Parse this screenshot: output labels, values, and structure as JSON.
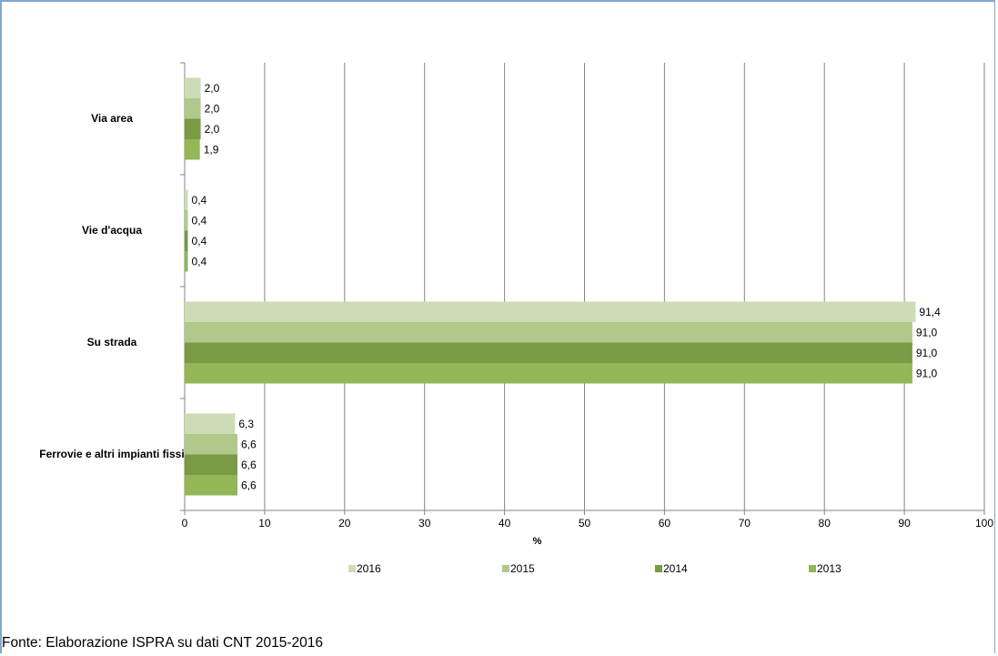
{
  "chart_data": {
    "type": "barh",
    "xlabel": "%",
    "categories": [
      "Via area",
      "Vie d'acqua",
      "Su strada",
      "Ferrovie e altri impianti fissi"
    ],
    "series": [
      {
        "name": "2016",
        "color": "#cddcb6",
        "values": [
          2.0,
          0.4,
          91.4,
          6.3
        ],
        "value_labels": [
          "2,0",
          "0,4",
          "91,4",
          "6,3"
        ]
      },
      {
        "name": "2015",
        "color": "#b0c98a",
        "values": [
          2.0,
          0.4,
          91.0,
          6.6
        ],
        "value_labels": [
          "2,0",
          "0,4",
          "91,0",
          "6,6"
        ]
      },
      {
        "name": "2014",
        "color": "#7a9a45",
        "values": [
          2.0,
          0.4,
          91.0,
          6.6
        ],
        "value_labels": [
          "2,0",
          "0,4",
          "91,0",
          "6,6"
        ]
      },
      {
        "name": "2013",
        "color": "#93b656",
        "values": [
          1.9,
          0.4,
          91.0,
          6.6
        ],
        "value_labels": [
          "1,9",
          "0,4",
          "91,0",
          "6,6"
        ]
      }
    ],
    "xlim": [
      0,
      100
    ],
    "xticks": [
      0,
      10,
      20,
      30,
      40,
      50,
      60,
      70,
      80,
      90,
      100
    ],
    "grid": true,
    "legend": "bottom"
  },
  "footer": "Fonte: Elaborazione ISPRA su dati CNT 2015-2016"
}
